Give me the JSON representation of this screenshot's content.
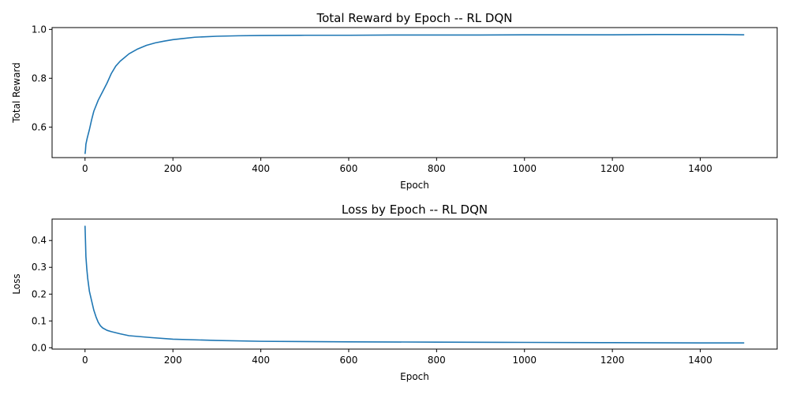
{
  "chart_data": [
    {
      "type": "line",
      "title": "Total Reward by Epoch -- RL DQN",
      "xlabel": "Epoch",
      "ylabel": "Total Reward",
      "xlim": [
        -75,
        1575
      ],
      "ylim": [
        0.475,
        1.0075
      ],
      "xticks": [
        0,
        200,
        400,
        600,
        800,
        1000,
        1200,
        1400
      ],
      "yticks": [
        0.6,
        0.8,
        1.0
      ],
      "ytick_labels": [
        "0.6",
        "0.8",
        "1.0"
      ],
      "grid": false,
      "line_color": "#1f77b4",
      "series": [
        {
          "x": [
            0,
            1,
            2,
            5,
            10,
            15,
            20,
            30,
            40,
            50,
            60,
            70,
            80,
            90,
            100,
            120,
            140,
            160,
            180,
            200,
            220,
            250,
            300,
            350,
            400,
            500,
            600,
            700,
            800,
            900,
            1000,
            1100,
            1200,
            1300,
            1400,
            1450,
            1500
          ],
          "y": [
            0.49,
            0.505,
            0.53,
            0.555,
            0.59,
            0.63,
            0.665,
            0.71,
            0.745,
            0.78,
            0.82,
            0.85,
            0.87,
            0.885,
            0.9,
            0.92,
            0.935,
            0.945,
            0.952,
            0.958,
            0.962,
            0.968,
            0.972,
            0.974,
            0.975,
            0.976,
            0.976,
            0.977,
            0.977,
            0.977,
            0.978,
            0.978,
            0.978,
            0.979,
            0.979,
            0.979,
            0.978
          ]
        }
      ]
    },
    {
      "type": "line",
      "title": "Loss by Epoch -- RL DQN",
      "xlabel": "Epoch",
      "ylabel": "Loss",
      "xlim": [
        -75,
        1575
      ],
      "ylim": [
        -0.005,
        0.48
      ],
      "xticks": [
        0,
        200,
        400,
        600,
        800,
        1000,
        1200,
        1400
      ],
      "yticks": [
        0.0,
        0.1,
        0.2,
        0.3,
        0.4
      ],
      "ytick_labels": [
        "0.0",
        "0.1",
        "0.2",
        "0.3",
        "0.4"
      ],
      "grid": false,
      "line_color": "#1f77b4",
      "series": [
        {
          "x": [
            0,
            1,
            2,
            4,
            6,
            8,
            10,
            15,
            20,
            25,
            30,
            35,
            40,
            50,
            60,
            80,
            100,
            150,
            200,
            300,
            400,
            600,
            800,
            1000,
            1200,
            1400,
            1500
          ],
          "y": [
            0.455,
            0.4,
            0.34,
            0.295,
            0.26,
            0.235,
            0.21,
            0.175,
            0.14,
            0.115,
            0.095,
            0.082,
            0.074,
            0.065,
            0.06,
            0.052,
            0.045,
            0.038,
            0.032,
            0.027,
            0.024,
            0.022,
            0.021,
            0.02,
            0.019,
            0.018,
            0.018
          ]
        }
      ]
    }
  ]
}
